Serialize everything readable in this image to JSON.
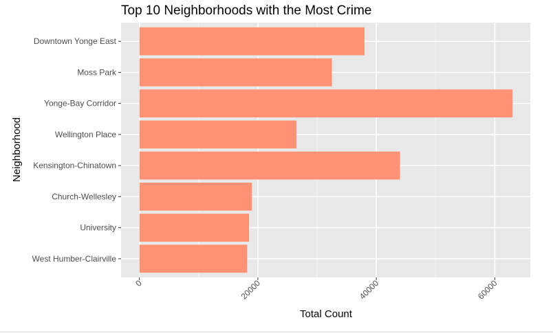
{
  "chart_data": {
    "type": "bar",
    "orientation": "horizontal",
    "title": "Top 10 Neighborhoods with the Most Crime",
    "xlabel": "Total Count",
    "ylabel": "Neighborhood",
    "categories": [
      "Downtown Yonge East",
      "Moss Park",
      "Yonge-Bay Corridor",
      "Wellington Place",
      "Kensington-Chinatown",
      "Church-Wellesley",
      "University",
      "West Humber-Clairville"
    ],
    "values": [
      38000,
      32500,
      63000,
      26500,
      44000,
      19000,
      18500,
      18200
    ],
    "xlim": [
      -3100,
      66000
    ],
    "xticks": [
      0,
      20000,
      40000,
      60000
    ],
    "xtick_labels": [
      "0",
      "20000",
      "40000",
      "60000"
    ],
    "bar_color": "#ff9175",
    "panel_background": "#e8e8e8",
    "grid": true,
    "legend": "none"
  }
}
